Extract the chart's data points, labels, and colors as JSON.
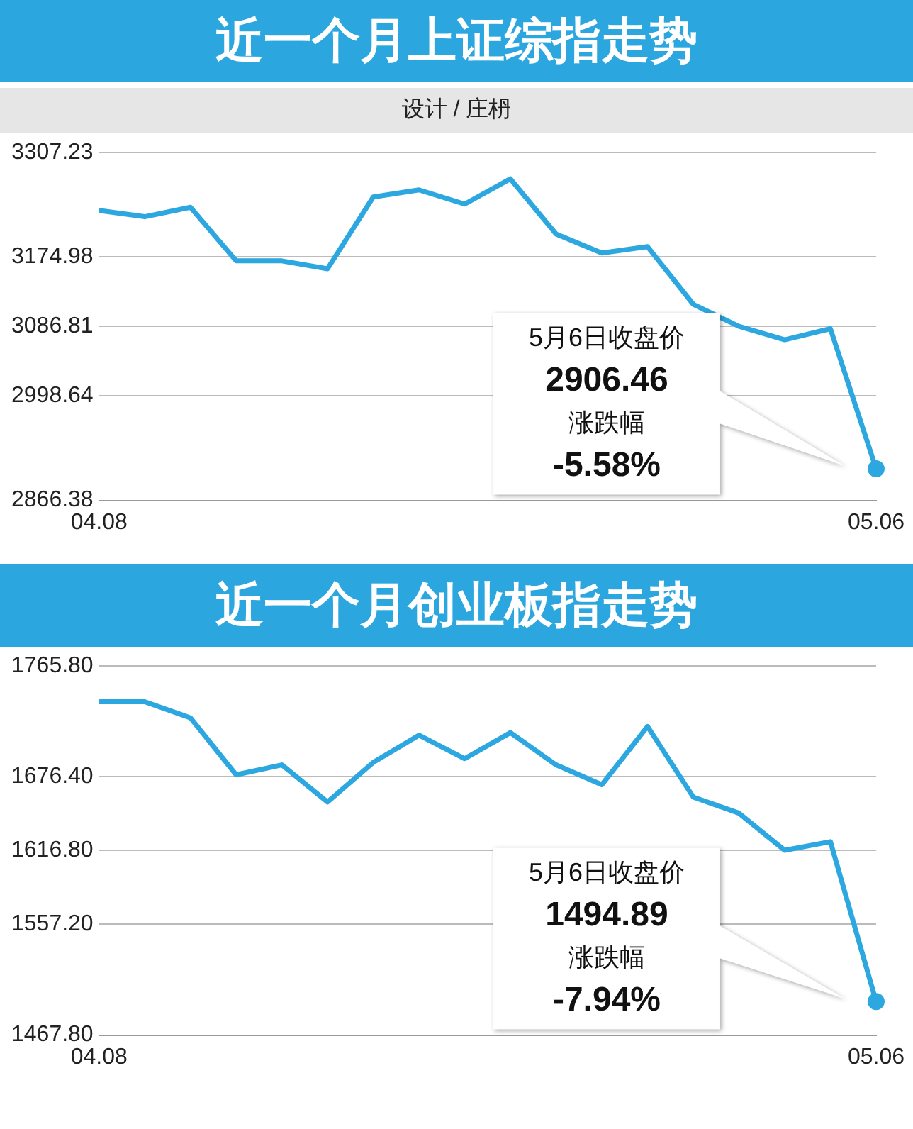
{
  "chart_data": [
    {
      "type": "line",
      "title": "近一个月上证综指走势",
      "subtitle": "设计 / 庄枬",
      "categories": [
        "04.08",
        null,
        null,
        null,
        null,
        null,
        null,
        null,
        null,
        null,
        null,
        null,
        null,
        null,
        null,
        null,
        null,
        "05.06"
      ],
      "series": [
        {
          "color": "#2da7df",
          "values": [
            3234,
            3226,
            3238,
            3170,
            3170,
            3160,
            3251,
            3260,
            3242,
            3274,
            3204,
            3180,
            3188,
            3115,
            3087,
            3070,
            3084,
            2906.46
          ]
        }
      ],
      "ylim": [
        2866.38,
        3307.23
      ],
      "yticks": [
        2866.38,
        2998.64,
        3086.81,
        3174.98,
        3307.23
      ],
      "grid": "y",
      "annotations": [
        "5月6日收盘价",
        "2906.46",
        "涨跌幅",
        "-5.58%"
      ]
    },
    {
      "type": "line",
      "title": "近一个月创业板指走势",
      "categories": [
        "04.08",
        null,
        null,
        null,
        null,
        null,
        null,
        null,
        null,
        null,
        null,
        null,
        null,
        null,
        null,
        null,
        null,
        "05.06"
      ],
      "series": [
        {
          "color": "#2da7df",
          "values": [
            1737,
            1737,
            1724,
            1678,
            1686,
            1656,
            1688,
            1710,
            1691,
            1712,
            1686,
            1670,
            1717,
            1660,
            1647,
            1617,
            1624,
            1494.89
          ]
        }
      ],
      "ylim": [
        1467.8,
        1765.8
      ],
      "yticks": [
        {
          "value": 1467.8,
          "label": "1467.80"
        },
        {
          "value": 1557.2,
          "label": "1557.20"
        },
        {
          "value": 1616.8,
          "label": "1616.80"
        },
        {
          "value": 1676.4,
          "label": "1676.40"
        },
        {
          "value": 1765.8,
          "label": "1765.80"
        }
      ],
      "grid": "y",
      "annotations": [
        "5月6日收盘价",
        "1494.89",
        "涨跌幅",
        "-7.94%"
      ]
    }
  ]
}
